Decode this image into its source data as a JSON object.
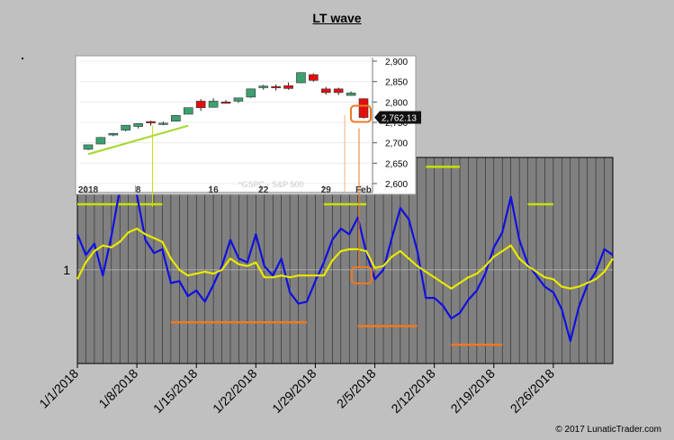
{
  "title": "LT wave",
  "copyright": "© 2017 LunaticTrader.com",
  "chart_data": [
    {
      "type": "line",
      "title": "LT wave",
      "ylabel": "",
      "yticks": [
        "1"
      ],
      "x_labels": [
        "1/1/2018",
        "1/8/2018",
        "1/15/2018",
        "1/22/2018",
        "1/29/2018",
        "2/5/2018",
        "2/12/2018",
        "2/19/2018",
        "2/26/2018"
      ],
      "x": [
        0,
        1,
        2,
        3,
        4,
        5,
        6,
        7,
        8,
        9,
        10,
        11,
        12,
        13,
        14,
        15,
        16,
        17,
        18,
        19,
        20,
        21,
        22,
        23,
        24,
        25,
        26,
        27,
        28,
        29,
        30,
        31,
        32,
        33,
        34,
        35,
        36,
        37,
        38,
        39,
        40,
        41,
        42,
        43,
        44,
        45,
        46,
        47,
        48,
        49,
        50,
        51,
        52,
        53,
        54,
        55,
        56,
        57,
        58,
        59,
        60,
        61,
        62,
        63
      ],
      "ylim": [
        0.5,
        1.6
      ],
      "grid": "vertical",
      "colors": {
        "wave": "#1010e0",
        "smoothed": "#e8e800",
        "highs": "#c8e000",
        "lows": "#f07820",
        "plot_bg": "#808080"
      },
      "series": [
        {
          "name": "",
          "values": [
            1.19,
            1.08,
            1.14,
            0.97,
            1.18,
            1.43,
            1.47,
            1.4,
            1.16,
            1.09,
            1.11,
            0.93,
            0.94,
            0.86,
            0.89,
            0.83,
            0.92,
            1.02,
            1.16,
            1.06,
            1.04,
            1.19,
            1.02,
            0.97,
            1.06,
            0.88,
            0.82,
            0.83,
            0.94,
            1.04,
            1.16,
            1.22,
            1.19,
            1.28,
            1.09,
            0.95,
            1.0,
            1.17,
            1.33,
            1.27,
            1.1,
            0.85,
            0.85,
            0.81,
            0.74,
            0.77,
            0.84,
            0.89,
            0.98,
            1.12,
            1.2,
            1.39,
            1.16,
            1.03,
            0.97,
            0.91,
            0.88,
            0.79,
            0.62,
            0.8,
            0.92,
            0.99,
            1.11,
            1.08
          ]
        },
        {
          "name": "",
          "values": [
            0.95,
            1.04,
            1.1,
            1.13,
            1.12,
            1.15,
            1.2,
            1.22,
            1.19,
            1.17,
            1.15,
            1.06,
            1.0,
            0.97,
            0.98,
            0.99,
            0.98,
            1.0,
            1.06,
            1.03,
            1.02,
            1.04,
            0.96,
            0.96,
            0.97,
            0.96,
            0.97,
            0.97,
            0.97,
            0.97,
            1.05,
            1.1,
            1.11,
            1.11,
            1.1,
            1.01,
            1.02,
            1.07,
            1.1,
            1.06,
            1.02,
            0.99,
            0.96,
            0.93,
            0.9,
            0.93,
            0.96,
            0.98,
            1.02,
            1.07,
            1.1,
            1.13,
            1.06,
            1.02,
            0.99,
            0.96,
            0.95,
            0.91,
            0.9,
            0.91,
            0.93,
            0.95,
            0.99,
            1.06
          ]
        }
      ],
      "annotations": {
        "highs": [
          [
            0,
            10,
            1.35
          ],
          [
            29,
            34,
            1.35
          ],
          [
            41,
            45,
            1.55
          ],
          [
            53,
            56,
            1.35
          ]
        ],
        "lows": [
          [
            11,
            27,
            0.72
          ],
          [
            33,
            40,
            0.7
          ],
          [
            44,
            50,
            0.6
          ]
        ]
      }
    },
    {
      "type": "candlestick",
      "title": "",
      "source_label": "^GSPC - S&P 500",
      "x_labels": [
        "2018",
        "8",
        "16",
        "22",
        "29",
        "Feb"
      ],
      "y_ticks": [
        2600,
        2650,
        2700,
        2750,
        2800,
        2850,
        2900
      ],
      "ylim": [
        2600,
        2900
      ],
      "last_price": "2,762.13",
      "candles": [
        {
          "o": 2684,
          "h": 2695,
          "l": 2682,
          "c": 2695
        },
        {
          "o": 2697,
          "h": 2714,
          "l": 2697,
          "c": 2713
        },
        {
          "o": 2719,
          "h": 2724,
          "l": 2716,
          "c": 2723
        },
        {
          "o": 2731,
          "h": 2743,
          "l": 2728,
          "c": 2743
        },
        {
          "o": 2740,
          "h": 2748,
          "l": 2735,
          "c": 2747
        },
        {
          "o": 2752,
          "h": 2754,
          "l": 2742,
          "c": 2751
        },
        {
          "o": 2748,
          "h": 2752,
          "l": 2743,
          "c": 2748
        },
        {
          "o": 2753,
          "h": 2767,
          "l": 2753,
          "c": 2767
        },
        {
          "o": 2770,
          "h": 2786,
          "l": 2770,
          "c": 2786
        },
        {
          "o": 2802,
          "h": 2807,
          "l": 2778,
          "c": 2786
        },
        {
          "o": 2787,
          "h": 2809,
          "l": 2786,
          "c": 2802
        },
        {
          "o": 2800,
          "h": 2805,
          "l": 2796,
          "c": 2798
        },
        {
          "o": 2802,
          "h": 2810,
          "l": 2798,
          "c": 2810
        },
        {
          "o": 2812,
          "h": 2833,
          "l": 2810,
          "c": 2832
        },
        {
          "o": 2835,
          "h": 2842,
          "l": 2830,
          "c": 2839
        },
        {
          "o": 2838,
          "h": 2843,
          "l": 2828,
          "c": 2837
        },
        {
          "o": 2840,
          "h": 2848,
          "l": 2830,
          "c": 2833
        },
        {
          "o": 2847,
          "h": 2872,
          "l": 2846,
          "c": 2872
        },
        {
          "o": 2867,
          "h": 2870,
          "l": 2850,
          "c": 2853
        },
        {
          "o": 2832,
          "h": 2837,
          "l": 2818,
          "c": 2823
        },
        {
          "o": 2832,
          "h": 2835,
          "l": 2817,
          "c": 2823
        },
        {
          "o": 2816,
          "h": 2826,
          "l": 2815,
          "c": 2822
        },
        {
          "o": 2808,
          "h": 2809,
          "l": 2759,
          "c": 2762
        }
      ]
    }
  ]
}
